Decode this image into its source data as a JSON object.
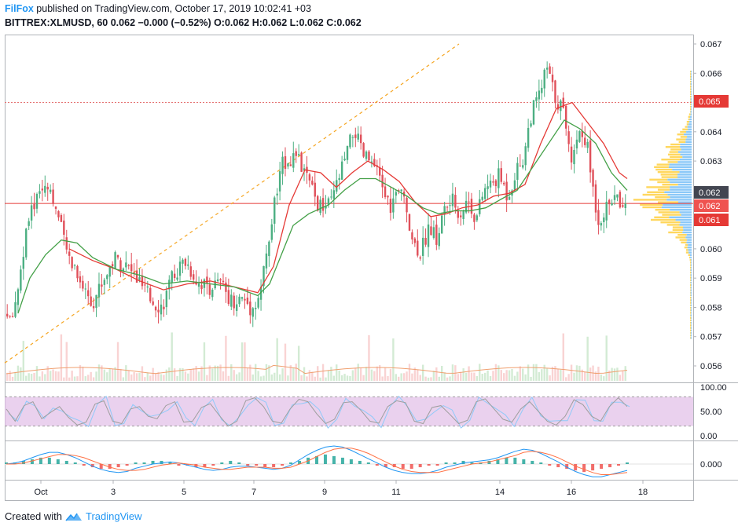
{
  "header": {
    "author": "FilFox",
    "published_text": " published on TradingView.com, October 17, 2019 10:02:41 +03",
    "symbol_line": "BITTREX:XLMUSD, 60  0.062  −0.000 (−0.52%)  O:0.062  H:0.062  L:0.062  C:0.062"
  },
  "footer": {
    "created_with": "Created with",
    "brand": "TradingView"
  },
  "colors": {
    "up": "#4caf82",
    "down": "#e0505a",
    "ma_fast": "#e53935",
    "ma_slow": "#43a047",
    "trendline": "#f5a623",
    "rsi_band": "#e1bee7",
    "macd": "#2196f3",
    "signal": "#ff7043",
    "vp_up": "#64b5f6",
    "vp_down": "#ffca28"
  },
  "chart_data": [
    {
      "type": "candlestick",
      "title": "BITTREX:XLMUSD, 60",
      "x_tick_labels": [
        "Oct",
        "3",
        "5",
        "7",
        "9",
        "11",
        "14",
        "16",
        "18"
      ],
      "y_tick_labels": [
        "0.067",
        "0.066",
        "0.065",
        "0.064",
        "0.063",
        "0.062",
        "0.061",
        "0.060",
        "0.059",
        "0.058",
        "0.057",
        "0.056"
      ],
      "ylim": [
        0.0555,
        0.0672
      ],
      "price_tags": [
        {
          "value": "0.065",
          "price": 0.065,
          "color": "#e53935"
        },
        {
          "value": "0.062",
          "price": 0.062,
          "color": "#434651"
        },
        {
          "value": "0.062",
          "price": 0.06155,
          "color": "#ef5350"
        },
        {
          "value": "0.061",
          "price": 0.0612,
          "color": "#e53935"
        }
      ],
      "horizontal_lines": [
        {
          "price": 0.065,
          "style": "dotted",
          "color": "#e57373"
        },
        {
          "price": 0.06155,
          "style": "solid",
          "color": "#e53935"
        }
      ],
      "trendline": {
        "from": [
          "Sep 30",
          0.0561
        ],
        "to": [
          "Oct 10",
          0.067
        ],
        "style": "dashed"
      },
      "series": [
        {
          "name": "Close",
          "path": [
            [
              0,
              0.0578
            ],
            [
              8,
              0.0574
            ],
            [
              18,
              0.0588
            ],
            [
              28,
              0.0606
            ],
            [
              40,
              0.0618
            ],
            [
              55,
              0.0623
            ],
            [
              65,
              0.0614
            ],
            [
              80,
              0.0598
            ],
            [
              90,
              0.0594
            ],
            [
              100,
              0.0587
            ],
            [
              112,
              0.0582
            ],
            [
              125,
              0.0589
            ],
            [
              140,
              0.0597
            ],
            [
              155,
              0.0594
            ],
            [
              170,
              0.0589
            ],
            [
              185,
              0.0583
            ],
            [
              200,
              0.058
            ],
            [
              215,
              0.0591
            ],
            [
              230,
              0.0596
            ],
            [
              245,
              0.0589
            ],
            [
              260,
              0.0587
            ],
            [
              275,
              0.0588
            ],
            [
              290,
              0.0582
            ],
            [
              305,
              0.0583
            ],
            [
              315,
              0.0579
            ],
            [
              325,
              0.0585
            ],
            [
              335,
              0.06
            ],
            [
              345,
              0.0618
            ],
            [
              355,
              0.063
            ],
            [
              370,
              0.0632
            ],
            [
              385,
              0.0624
            ],
            [
              400,
              0.0614
            ],
            [
              415,
              0.0615
            ],
            [
              425,
              0.0624
            ],
            [
              435,
              0.0632
            ],
            [
              445,
              0.0641
            ],
            [
              455,
              0.0632
            ],
            [
              465,
              0.063
            ],
            [
              480,
              0.0622
            ],
            [
              490,
              0.0614
            ],
            [
              500,
              0.0619
            ],
            [
              510,
              0.0617
            ],
            [
              520,
              0.0602
            ],
            [
              530,
              0.0599
            ],
            [
              540,
              0.0608
            ],
            [
              550,
              0.0603
            ],
            [
              560,
              0.0614
            ],
            [
              570,
              0.0616
            ],
            [
              580,
              0.0612
            ],
            [
              590,
              0.0617
            ],
            [
              600,
              0.061
            ],
            [
              610,
              0.062
            ],
            [
              620,
              0.0622
            ],
            [
              630,
              0.0625
            ],
            [
              640,
              0.0618
            ],
            [
              650,
              0.0626
            ],
            [
              660,
              0.0631
            ],
            [
              670,
              0.0646
            ],
            [
              680,
              0.0652
            ],
            [
              690,
              0.0662
            ],
            [
              700,
              0.0652
            ],
            [
              710,
              0.0648
            ],
            [
              715,
              0.0642
            ],
            [
              720,
              0.063
            ],
            [
              730,
              0.064
            ],
            [
              740,
              0.0638
            ],
            [
              748,
              0.0622
            ],
            [
              755,
              0.061
            ],
            [
              765,
              0.0613
            ],
            [
              775,
              0.0618
            ],
            [
              785,
              0.0615
            ],
            [
              790,
              0.0618
            ]
          ]
        },
        {
          "name": "MA fast",
          "path": [
            [
              80,
              0.06
            ],
            [
              110,
              0.0596
            ],
            [
              140,
              0.0593
            ],
            [
              170,
              0.0589
            ],
            [
              200,
              0.0586
            ],
            [
              230,
              0.0588
            ],
            [
              260,
              0.0589
            ],
            [
              290,
              0.0587
            ],
            [
              320,
              0.0585
            ],
            [
              340,
              0.0594
            ],
            [
              360,
              0.0615
            ],
            [
              380,
              0.0627
            ],
            [
              400,
              0.0626
            ],
            [
              420,
              0.0621
            ],
            [
              440,
              0.0626
            ],
            [
              460,
              0.063
            ],
            [
              480,
              0.0627
            ],
            [
              500,
              0.0623
            ],
            [
              520,
              0.0616
            ],
            [
              540,
              0.0611
            ],
            [
              560,
              0.0612
            ],
            [
              580,
              0.0614
            ],
            [
              600,
              0.0615
            ],
            [
              620,
              0.0618
            ],
            [
              640,
              0.0619
            ],
            [
              660,
              0.0622
            ],
            [
              680,
              0.0636
            ],
            [
              700,
              0.0648
            ],
            [
              720,
              0.065
            ],
            [
              740,
              0.0643
            ],
            [
              760,
              0.0636
            ],
            [
              780,
              0.0626
            ],
            [
              790,
              0.0624
            ]
          ]
        },
        {
          "name": "MA slow",
          "path": [
            [
              15,
              0.0578
            ],
            [
              30,
              0.059
            ],
            [
              50,
              0.0598
            ],
            [
              70,
              0.0603
            ],
            [
              90,
              0.0602
            ],
            [
              110,
              0.0597
            ],
            [
              140,
              0.0593
            ],
            [
              170,
              0.0591
            ],
            [
              200,
              0.0588
            ],
            [
              230,
              0.0589
            ],
            [
              260,
              0.0588
            ],
            [
              290,
              0.0587
            ],
            [
              320,
              0.0584
            ],
            [
              335,
              0.0588
            ],
            [
              350,
              0.0598
            ],
            [
              365,
              0.0608
            ],
            [
              385,
              0.0612
            ],
            [
              410,
              0.0615
            ],
            [
              430,
              0.062
            ],
            [
              450,
              0.0624
            ],
            [
              470,
              0.0624
            ],
            [
              490,
              0.0621
            ],
            [
              510,
              0.0618
            ],
            [
              530,
              0.0614
            ],
            [
              550,
              0.0612
            ],
            [
              570,
              0.0613
            ],
            [
              590,
              0.0613
            ],
            [
              610,
              0.0614
            ],
            [
              630,
              0.0617
            ],
            [
              650,
              0.062
            ],
            [
              670,
              0.0628
            ],
            [
              690,
              0.0636
            ],
            [
              710,
              0.0644
            ],
            [
              730,
              0.0641
            ],
            [
              750,
              0.0636
            ],
            [
              770,
              0.0626
            ],
            [
              790,
              0.062
            ]
          ]
        }
      ]
    },
    {
      "type": "line",
      "title": "RSI",
      "y_tick_labels": [
        "100.00",
        "50.00",
        "0.00"
      ],
      "ylim": [
        0,
        100
      ],
      "band": [
        20,
        80
      ],
      "series": [
        {
          "values": [
            55,
            30,
            62,
            70,
            35,
            48,
            60,
            38,
            22,
            28,
            65,
            72,
            30,
            25,
            55,
            60,
            40,
            35,
            62,
            70,
            28,
            30,
            58,
            66,
            42,
            20,
            30,
            72,
            78,
            60,
            30,
            26,
            55,
            75,
            70,
            45,
            25,
            34,
            68,
            70,
            52,
            30,
            26,
            60,
            72,
            68,
            30,
            25,
            58,
            62,
            44,
            25,
            32,
            70,
            76,
            55,
            34,
            28,
            55,
            70,
            50,
            30,
            22,
            40,
            74,
            64,
            40,
            30,
            60,
            78,
            60
          ]
        }
      ]
    },
    {
      "type": "bar",
      "title": "MACD",
      "y_tick_labels": [
        "0.000"
      ],
      "histogram": [
        1,
        1,
        2,
        3,
        4,
        4,
        3,
        2,
        1,
        -1,
        -2,
        -3,
        -3,
        -2,
        -1,
        1,
        1,
        2,
        2,
        1,
        -1,
        -1,
        -2,
        -2,
        -1,
        1,
        2,
        1,
        -1,
        -1,
        -2,
        -2,
        -1,
        1,
        2,
        4,
        5,
        6,
        5,
        4,
        3,
        2,
        1,
        -1,
        -2,
        -2,
        -3,
        -3,
        -2,
        -1,
        -1,
        1,
        1,
        2,
        1,
        1,
        2,
        3,
        4,
        4,
        3,
        2,
        1,
        -1,
        -2,
        -3,
        -4,
        -5,
        -4,
        -3,
        -2,
        -1,
        1
      ],
      "series": [
        {
          "values": [
            0,
            1,
            3,
            6,
            9,
            11,
            11,
            9,
            6,
            2,
            -2,
            -5,
            -7,
            -8,
            -7,
            -4,
            -2,
            0,
            1,
            2,
            1,
            -1,
            -3,
            -5,
            -6,
            -5,
            -3,
            -2,
            -2,
            -3,
            -4,
            -5,
            -4,
            -1,
            4,
            9,
            13,
            16,
            17,
            16,
            13,
            9,
            5,
            1,
            -3,
            -6,
            -8,
            -9,
            -9,
            -8,
            -6,
            -3,
            -1,
            1,
            2,
            3,
            4,
            6,
            9,
            12,
            14,
            13,
            10,
            6,
            2,
            -3,
            -7,
            -10,
            -12,
            -12,
            -10,
            -8,
            -6
          ]
        },
        {
          "values": [
            0,
            0,
            1,
            3,
            5,
            7,
            9,
            9,
            8,
            6,
            3,
            0,
            -3,
            -5,
            -6,
            -6,
            -5,
            -3,
            -1,
            0,
            1,
            0,
            -1,
            -3,
            -4,
            -5,
            -5,
            -4,
            -3,
            -3,
            -3,
            -4,
            -4,
            -3,
            0,
            3,
            7,
            11,
            14,
            15,
            15,
            13,
            10,
            6,
            2,
            -2,
            -5,
            -7,
            -8,
            -8,
            -8,
            -6,
            -4,
            -2,
            0,
            1,
            2,
            4,
            6,
            8,
            11,
            12,
            11,
            9,
            6,
            2,
            -2,
            -5,
            -8,
            -10,
            -10,
            -9,
            -8
          ]
        }
      ]
    }
  ]
}
